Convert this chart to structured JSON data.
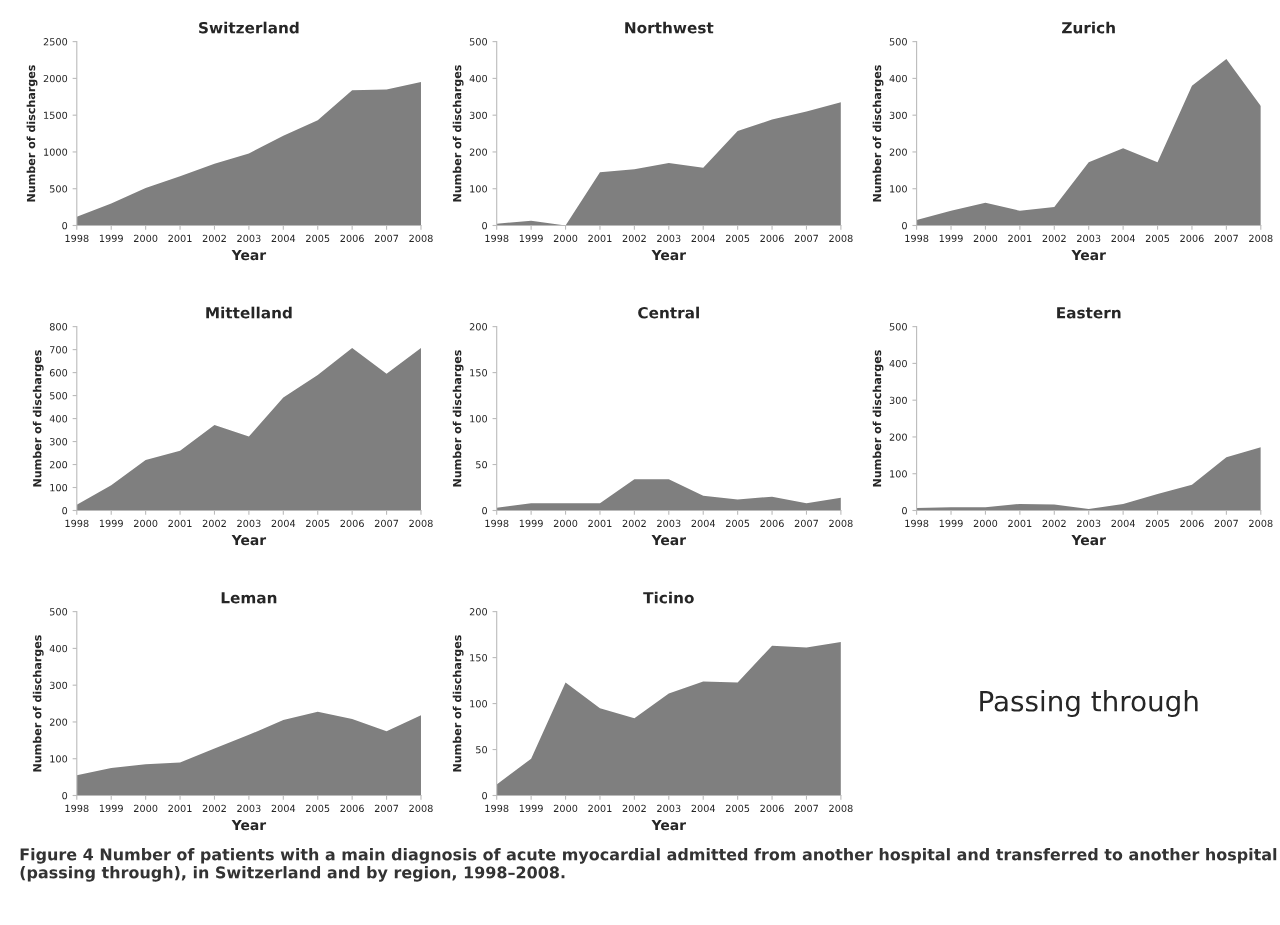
{
  "chart_data": [
    {
      "type": "area",
      "title": "Switzerland",
      "xlabel": "Year",
      "ylabel": "Number of discharges",
      "categories": [
        "1998",
        "1999",
        "2000",
        "2001",
        "2002",
        "2003",
        "2004",
        "2005",
        "2006",
        "2007",
        "2008"
      ],
      "color": "#7f7f7f",
      "values": [
        120,
        300,
        510,
        670,
        840,
        980,
        1220,
        1430,
        1840,
        1850,
        1950
      ],
      "ylim": [
        0,
        2500
      ],
      "yticks": [
        0,
        500,
        1000,
        1500,
        2000,
        2500
      ],
      "grid": false
    },
    {
      "type": "area",
      "title": "Northwest",
      "xlabel": "Year",
      "ylabel": "Number of discharges",
      "categories": [
        "1998",
        "1999",
        "2000",
        "2001",
        "2002",
        "2003",
        "2004",
        "2005",
        "2006",
        "2007",
        "2008"
      ],
      "color": "#7f7f7f",
      "values": [
        5,
        13,
        0,
        145,
        153,
        170,
        157,
        257,
        288,
        310,
        335
      ],
      "ylim": [
        0,
        500
      ],
      "yticks": [
        0,
        100,
        200,
        300,
        400,
        500
      ],
      "grid": false
    },
    {
      "type": "area",
      "title": "Zurich",
      "xlabel": "Year",
      "ylabel": "Number of discharges",
      "categories": [
        "1998",
        "1999",
        "2000",
        "2001",
        "2002",
        "2003",
        "2004",
        "2005",
        "2006",
        "2007",
        "2008"
      ],
      "color": "#7f7f7f",
      "values": [
        15,
        40,
        62,
        40,
        50,
        172,
        210,
        172,
        380,
        453,
        325
      ],
      "ylim": [
        0,
        500
      ],
      "yticks": [
        0,
        100,
        200,
        300,
        400,
        500
      ],
      "grid": false
    },
    {
      "type": "area",
      "title": "Mittelland",
      "xlabel": "Year",
      "ylabel": "Number of discharges",
      "categories": [
        "1998",
        "1999",
        "2000",
        "2001",
        "2002",
        "2003",
        "2004",
        "2005",
        "2006",
        "2007",
        "2008"
      ],
      "color": "#7f7f7f",
      "values": [
        25,
        110,
        220,
        260,
        372,
        322,
        492,
        590,
        707,
        595,
        707
      ],
      "ylim": [
        0,
        800
      ],
      "yticks": [
        0,
        100,
        200,
        300,
        400,
        500,
        600,
        700,
        800
      ],
      "grid": false
    },
    {
      "type": "area",
      "title": "Central",
      "xlabel": "Year",
      "ylabel": "Number of discharges",
      "categories": [
        "1998",
        "1999",
        "2000",
        "2001",
        "2002",
        "2003",
        "2004",
        "2005",
        "2006",
        "2007",
        "2008"
      ],
      "color": "#7f7f7f",
      "values": [
        3,
        8,
        8,
        8,
        34,
        34,
        16,
        12,
        15,
        8,
        14
      ],
      "ylim": [
        0,
        200
      ],
      "yticks": [
        0,
        50,
        100,
        150,
        200
      ],
      "grid": false
    },
    {
      "type": "area",
      "title": "Eastern",
      "xlabel": "Year",
      "ylabel": "Number of discharges",
      "categories": [
        "1998",
        "1999",
        "2000",
        "2001",
        "2002",
        "2003",
        "2004",
        "2005",
        "2006",
        "2007",
        "2008"
      ],
      "color": "#7f7f7f",
      "values": [
        7,
        9,
        9,
        18,
        16,
        4,
        18,
        45,
        70,
        145,
        172
      ],
      "ylim": [
        0,
        500
      ],
      "yticks": [
        0,
        100,
        200,
        300,
        400,
        500
      ],
      "grid": false
    },
    {
      "type": "area",
      "title": "Leman",
      "xlabel": "Year",
      "ylabel": "Number of discharges",
      "categories": [
        "1998",
        "1999",
        "2000",
        "2001",
        "2002",
        "2003",
        "2004",
        "2005",
        "2006",
        "2007",
        "2008"
      ],
      "color": "#7f7f7f",
      "values": [
        55,
        75,
        85,
        90,
        128,
        165,
        205,
        228,
        208,
        175,
        218
      ],
      "ylim": [
        0,
        500
      ],
      "yticks": [
        0,
        100,
        200,
        300,
        400,
        500
      ],
      "grid": false
    },
    {
      "type": "area",
      "title": "Ticino",
      "xlabel": "Year",
      "ylabel": "Number of discharges",
      "categories": [
        "1998",
        "1999",
        "2000",
        "2001",
        "2002",
        "2003",
        "2004",
        "2005",
        "2006",
        "2007",
        "2008"
      ],
      "color": "#7f7f7f",
      "values": [
        12,
        40,
        123,
        95,
        84,
        111,
        124,
        123,
        163,
        161,
        167
      ],
      "ylim": [
        0,
        200
      ],
      "yticks": [
        0,
        50,
        100,
        150,
        200
      ],
      "grid": false
    },
    {
      "type": "other",
      "annotations": [
        "Passing through",
        "Figure 4 Number of patients with a main diagnosis of acute myocardial admitted from another hospital and transferred to another hospital (passing through), in Switzerland and by region, 1998–2008."
      ]
    }
  ]
}
